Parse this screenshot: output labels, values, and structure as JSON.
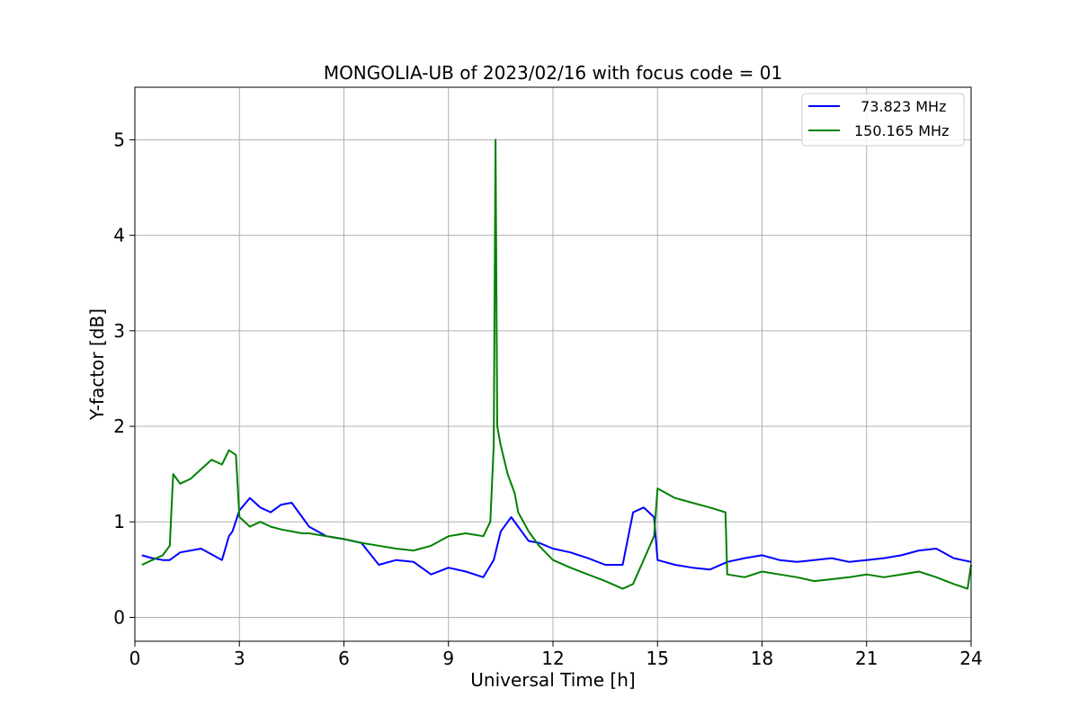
{
  "chart_data": {
    "type": "line",
    "title": "MONGOLIA-UB of 2023/02/16 with focus code = 01",
    "xlabel": "Universal Time [h]",
    "ylabel": "Y-factor [dB]",
    "xlim": [
      0,
      24
    ],
    "ylim": [
      -0.25,
      5.55
    ],
    "xticks": [
      0,
      3,
      6,
      9,
      12,
      15,
      18,
      21,
      24
    ],
    "yticks": [
      0,
      1,
      2,
      3,
      4,
      5
    ],
    "grid": true,
    "legend_position": "top-right",
    "series": [
      {
        "name": "  73.823 MHz",
        "color": "#0000ff",
        "x": [
          0.2,
          0.5,
          0.8,
          1.0,
          1.3,
          1.6,
          1.9,
          2.2,
          2.5,
          2.7,
          2.8,
          3.0,
          3.3,
          3.6,
          3.9,
          4.2,
          4.5,
          4.8,
          5.0,
          5.5,
          6.0,
          6.5,
          7.0,
          7.5,
          8.0,
          8.5,
          9.0,
          9.5,
          10.0,
          10.3,
          10.5,
          10.8,
          11.0,
          11.3,
          11.6,
          12.0,
          12.5,
          13.0,
          13.5,
          14.0,
          14.3,
          14.6,
          14.9,
          15.0,
          15.5,
          16.0,
          16.5,
          17.0,
          17.5,
          18.0,
          18.5,
          19.0,
          19.5,
          20.0,
          20.5,
          21.0,
          21.5,
          22.0,
          22.5,
          23.0,
          23.5,
          24.0
        ],
        "y": [
          0.65,
          0.62,
          0.6,
          0.6,
          0.68,
          0.7,
          0.72,
          0.66,
          0.6,
          0.85,
          0.9,
          1.12,
          1.25,
          1.15,
          1.1,
          1.18,
          1.2,
          1.05,
          0.95,
          0.85,
          0.82,
          0.78,
          0.55,
          0.6,
          0.58,
          0.45,
          0.52,
          0.48,
          0.42,
          0.6,
          0.9,
          1.05,
          0.95,
          0.8,
          0.78,
          0.72,
          0.68,
          0.62,
          0.55,
          0.55,
          1.1,
          1.15,
          1.05,
          0.6,
          0.55,
          0.52,
          0.5,
          0.58,
          0.62,
          0.65,
          0.6,
          0.58,
          0.6,
          0.62,
          0.58,
          0.6,
          0.62,
          0.65,
          0.7,
          0.72,
          0.62,
          0.58
        ]
      },
      {
        "name": "150.165 MHz",
        "color": "#008000",
        "x": [
          0.2,
          0.5,
          0.8,
          1.0,
          1.1,
          1.3,
          1.6,
          1.9,
          2.2,
          2.5,
          2.7,
          2.9,
          3.0,
          3.3,
          3.6,
          3.9,
          4.2,
          4.5,
          4.8,
          5.0,
          5.5,
          6.0,
          6.5,
          7.0,
          7.5,
          8.0,
          8.5,
          9.0,
          9.5,
          10.0,
          10.2,
          10.3,
          10.35,
          10.4,
          10.5,
          10.7,
          10.9,
          11.0,
          11.3,
          11.6,
          12.0,
          12.5,
          13.0,
          13.5,
          14.0,
          14.3,
          14.6,
          14.9,
          15.0,
          15.5,
          16.0,
          16.5,
          16.95,
          17.0,
          17.5,
          18.0,
          18.5,
          19.0,
          19.5,
          20.0,
          20.5,
          21.0,
          21.5,
          22.0,
          22.5,
          23.0,
          23.5,
          23.9,
          24.0
        ],
        "y": [
          0.55,
          0.6,
          0.65,
          0.75,
          1.5,
          1.4,
          1.45,
          1.55,
          1.65,
          1.6,
          1.75,
          1.7,
          1.05,
          0.95,
          1.0,
          0.95,
          0.92,
          0.9,
          0.88,
          0.88,
          0.85,
          0.82,
          0.78,
          0.75,
          0.72,
          0.7,
          0.75,
          0.85,
          0.88,
          0.85,
          1.0,
          1.8,
          5.0,
          2.0,
          1.8,
          1.5,
          1.3,
          1.1,
          0.9,
          0.75,
          0.6,
          0.52,
          0.45,
          0.38,
          0.3,
          0.35,
          0.6,
          0.85,
          1.35,
          1.25,
          1.2,
          1.15,
          1.1,
          0.45,
          0.42,
          0.48,
          0.45,
          0.42,
          0.38,
          0.4,
          0.42,
          0.45,
          0.42,
          0.45,
          0.48,
          0.42,
          0.35,
          0.3,
          0.55
        ]
      }
    ]
  }
}
